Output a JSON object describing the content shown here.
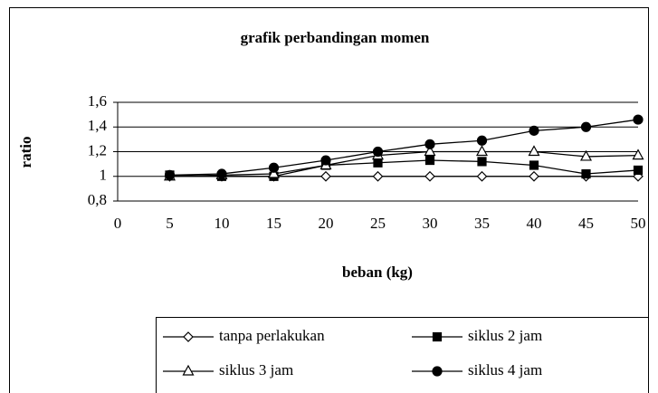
{
  "chart_data": {
    "type": "line",
    "title": "grafik perbandingan momen",
    "x_label": "beban (kg)",
    "y_label": "ratio",
    "x": [
      5,
      10,
      15,
      20,
      25,
      30,
      35,
      40,
      45,
      50
    ],
    "series": [
      {
        "name": "tanpa perlakukan",
        "color": "#000000",
        "marker": "diamond",
        "values": [
          1,
          1,
          1,
          1,
          1,
          1,
          1,
          1,
          1,
          1
        ]
      },
      {
        "name": "siklus 2 jam",
        "color": "#000000",
        "marker": "square",
        "values": [
          1.01,
          1.0,
          1.0,
          1.09,
          1.11,
          1.13,
          1.12,
          1.09,
          1.02,
          1.05
        ]
      },
      {
        "name": "siklus 3 jam",
        "color": "#000000",
        "marker": "triangle",
        "values": [
          1.0,
          1.01,
          1.02,
          1.09,
          1.17,
          1.2,
          1.2,
          1.2,
          1.16,
          1.17
        ]
      },
      {
        "name": "siklus 4 jam",
        "color": "#000000",
        "marker": "circle",
        "values": [
          1.01,
          1.02,
          1.07,
          1.13,
          1.2,
          1.26,
          1.29,
          1.37,
          1.4,
          1.46
        ]
      }
    ],
    "xlim": [
      0,
      50
    ],
    "xticks": [
      0,
      5,
      10,
      15,
      20,
      25,
      30,
      35,
      40,
      45,
      50
    ],
    "ylim": [
      0.8,
      1.6
    ],
    "yticks": [
      {
        "value": 0.8,
        "label": "0,8"
      },
      1,
      {
        "value": 1.2,
        "label": "1,2"
      },
      {
        "value": 1.4,
        "label": "1,4"
      },
      {
        "value": 1.6,
        "label": "1,6"
      }
    ],
    "grid": true,
    "legend": "bottom"
  }
}
